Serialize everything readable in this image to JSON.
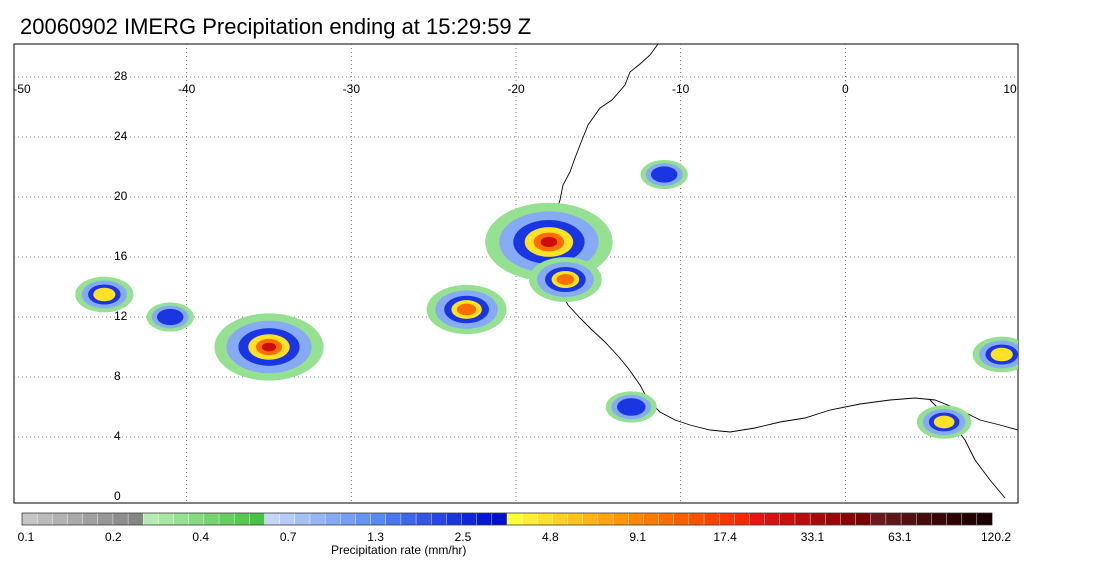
{
  "title": "20060902 IMERG Precipitation ending at 15:29:59 Z",
  "longitude_labels": [
    "-50",
    "-40",
    "-30",
    "-20",
    "-10",
    "0",
    "10"
  ],
  "latitude_labels": [
    "28",
    "24",
    "20",
    "16",
    "12",
    "8",
    "4",
    "0"
  ],
  "colorbar": {
    "title": "Precipitation rate (mm/hr)",
    "tick_labels": [
      "0.1",
      "0.2",
      "0.4",
      "0.7",
      "1.3",
      "2.5",
      "4.8",
      "9.1",
      "17.4",
      "33.1",
      "63.1",
      "120.2"
    ],
    "colors": [
      "#c4c4c4",
      "#bbbbbb",
      "#b2b2b2",
      "#a9a9a9",
      "#a0a0a0",
      "#979797",
      "#8e8e8e",
      "#858585",
      "#b6ecb3",
      "#a6e6a2",
      "#96e091",
      "#86da80",
      "#76d470",
      "#66ce60",
      "#56c850",
      "#48c244",
      "#c6d6f8",
      "#b6cbf7",
      "#a6c0f6",
      "#96b5f5",
      "#86aaf4",
      "#769ff3",
      "#6694f2",
      "#5689f1",
      "#4a76ee",
      "#3e66eb",
      "#3256e8",
      "#2646e5",
      "#1a36e2",
      "#0e26df",
      "#0216dc",
      "#0010d0",
      "#ffff33",
      "#fff02c",
      "#ffe125",
      "#ffd21e",
      "#ffc317",
      "#ffb410",
      "#ffa509",
      "#ff9602",
      "#ff8800",
      "#ff7a00",
      "#ff6c00",
      "#ff5e00",
      "#ff5000",
      "#ff4200",
      "#ff3400",
      "#ff2600",
      "#ee1111",
      "#dd0f0f",
      "#cc0d0d",
      "#bb0b0b",
      "#aa0909",
      "#990707",
      "#880505",
      "#770303",
      "#6a1a1a",
      "#5e1515",
      "#521010",
      "#460b0b",
      "#3a0606",
      "#2e0101",
      "#250000",
      "#1c0000"
    ]
  },
  "precipitation_cells": [
    {
      "lon": -45,
      "lat": 13.5,
      "peak_mm_hr": 6
    },
    {
      "lon": -41,
      "lat": 12.0,
      "peak_mm_hr": 3
    },
    {
      "lon": -35,
      "lat": 10.0,
      "peak_mm_hr": 20
    },
    {
      "lon": -23,
      "lat": 12.5,
      "peak_mm_hr": 12
    },
    {
      "lon": -18,
      "lat": 17.0,
      "peak_mm_hr": 25
    },
    {
      "lon": -17,
      "lat": 14.5,
      "peak_mm_hr": 10
    },
    {
      "lon": -11,
      "lat": 21.5,
      "peak_mm_hr": 3
    },
    {
      "lon": -13,
      "lat": 6.0,
      "peak_mm_hr": 4
    },
    {
      "lon": 9.5,
      "lat": 9.5,
      "peak_mm_hr": 6
    },
    {
      "lon": 6,
      "lat": 5.0,
      "peak_mm_hr": 5
    }
  ]
}
